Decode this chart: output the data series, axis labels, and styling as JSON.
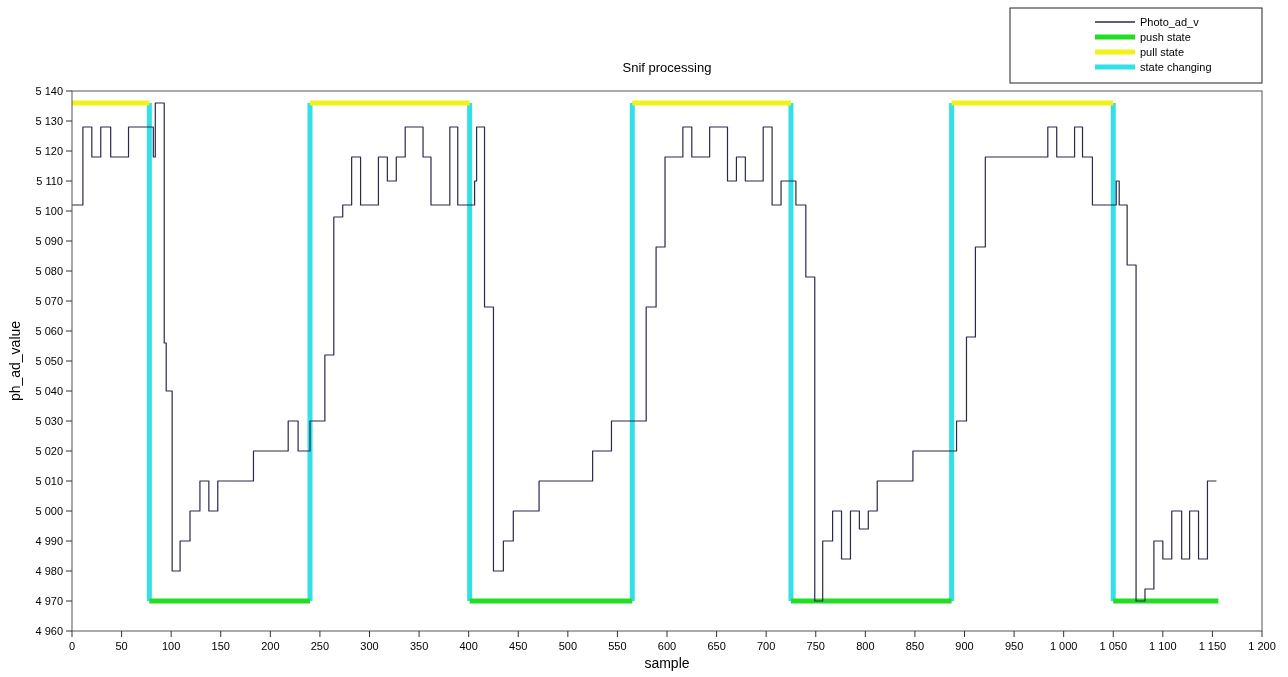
{
  "chart_data": {
    "type": "line",
    "title": "Snif processing",
    "xlabel": "sample",
    "ylabel": "ph_ad_value",
    "xlim": [
      0,
      1200
    ],
    "xticks": [
      0,
      50,
      100,
      150,
      200,
      250,
      300,
      350,
      400,
      450,
      500,
      550,
      600,
      650,
      700,
      750,
      800,
      850,
      900,
      950,
      {
        "value": 1000,
        "label": "1 000"
      },
      {
        "value": 1050,
        "label": "1 050"
      },
      {
        "value": 1100,
        "label": "1 100"
      },
      {
        "value": 1150,
        "label": "1 150"
      },
      {
        "value": 1200,
        "label": "1 200"
      }
    ],
    "ylim": [
      4960,
      5140
    ],
    "yticks": [
      {
        "value": 4960,
        "label": "4 960"
      },
      {
        "value": 4970,
        "label": "4 970"
      },
      {
        "value": 4980,
        "label": "4 980"
      },
      {
        "value": 4990,
        "label": "4 990"
      },
      {
        "value": 5000,
        "label": "5 000"
      },
      {
        "value": 5010,
        "label": "5 010"
      },
      {
        "value": 5020,
        "label": "5 020"
      },
      {
        "value": 5030,
        "label": "5 030"
      },
      {
        "value": 5040,
        "label": "5 040"
      },
      {
        "value": 5050,
        "label": "5 050"
      },
      {
        "value": 5060,
        "label": "5 060"
      },
      {
        "value": 5070,
        "label": "5 070"
      },
      {
        "value": 5080,
        "label": "5 080"
      },
      {
        "value": 5090,
        "label": "5 090"
      },
      {
        "value": 5100,
        "label": "5 100"
      },
      {
        "value": 5110,
        "label": "5 110"
      },
      {
        "value": 5120,
        "label": "5 120"
      },
      {
        "value": 5130,
        "label": "5 130"
      },
      {
        "value": 5140,
        "label": "5 140"
      }
    ],
    "grid": false,
    "legend": "top right",
    "marker": "none",
    "line_style": "solid",
    "series": [
      {
        "name": "Photo_ad_v",
        "type": "step",
        "color": "#2a2a4a",
        "x": [
          0,
          11,
          20,
          29,
          39,
          57,
          82,
          84,
          93,
          95,
          101,
          109,
          119,
          129,
          138,
          147,
          183,
          218,
          228,
          240,
          255,
          264,
          273,
          282,
          291,
          309,
          318,
          327,
          336,
          354,
          362,
          381,
          389,
          406,
          408,
          416,
          425,
          435,
          445,
          471,
          525,
          544,
          579,
          589,
          598,
          616,
          625,
          643,
          661,
          670,
          679,
          697,
          706,
          715,
          730,
          740,
          749,
          757,
          767,
          776,
          785,
          794,
          803,
          812,
          848,
          892,
          902,
          911,
          921,
          984,
          993,
          1011,
          1019,
          1029,
          1053,
          1056,
          1064,
          1073,
          1082,
          1091,
          1100,
          1109,
          1119,
          1127,
          1136,
          1145,
          1154
        ],
        "values": [
          5102,
          5128,
          5118,
          5128,
          5118,
          5128,
          5118,
          5136,
          5056,
          5040,
          4980,
          4990,
          5000,
          5010,
          5000,
          5010,
          5020,
          5030,
          5020,
          5030,
          5052,
          5098,
          5102,
          5118,
          5102,
          5118,
          5110,
          5118,
          5128,
          5118,
          5102,
          5128,
          5102,
          5110,
          5128,
          5068,
          4980,
          4990,
          5000,
          5010,
          5020,
          5030,
          5068,
          5088,
          5118,
          5128,
          5118,
          5128,
          5110,
          5118,
          5110,
          5128,
          5102,
          5110,
          5102,
          5078,
          4970,
          4990,
          5000,
          4984,
          5000,
          4994,
          5000,
          5010,
          5020,
          5030,
          5058,
          5088,
          5118,
          5128,
          5118,
          5128,
          5118,
          5102,
          5110,
          5102,
          5082,
          4970,
          4974,
          4990,
          4984,
          5000,
          4984,
          5000,
          4984,
          5010,
          5010
        ]
      },
      {
        "name": "push state",
        "color": "#22dd22",
        "x": [
          78,
          240,
          320,
          401,
          565,
          645,
          725,
          887,
          968,
          1050,
          1156
        ],
        "values": [
          4970,
          4970,
          null,
          4970,
          4970,
          null,
          4970,
          4970,
          null,
          4970,
          4970
        ]
      },
      {
        "name": "pull state",
        "color": "#f2f21a",
        "x": [
          0,
          78,
          160,
          240,
          401,
          483,
          565,
          725,
          806,
          887,
          1050
        ],
        "values": [
          5136,
          5136,
          null,
          5136,
          5136,
          null,
          5136,
          5136,
          null,
          5136,
          5136
        ]
      },
      {
        "name": "state changing",
        "color": "#33e0e8",
        "x": [
          78,
          78,
          160,
          240,
          240,
          320,
          401,
          401,
          483,
          565,
          565,
          645,
          725,
          725,
          806,
          887,
          887,
          968,
          1050,
          1050
        ],
        "values": [
          5136,
          4970,
          null,
          4970,
          5136,
          null,
          5136,
          4970,
          null,
          4970,
          5136,
          null,
          5136,
          4970,
          null,
          4970,
          5136,
          null,
          5136,
          4970
        ]
      }
    ]
  }
}
